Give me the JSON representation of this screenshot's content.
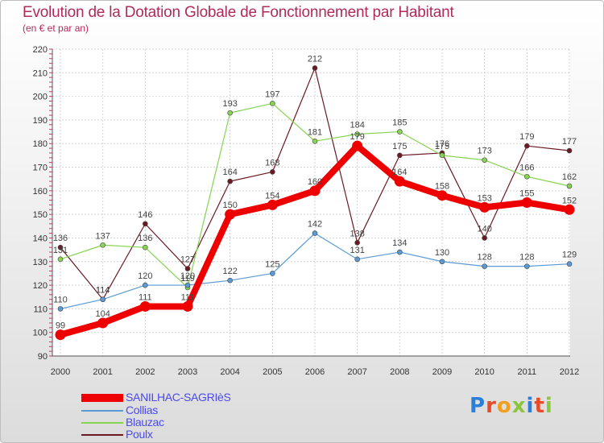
{
  "chart_data": {
    "type": "line",
    "title": "Evolution de la Dotation Globale de Fonctionnement par Habitant",
    "subtitle": "(en € et par an)",
    "x": [
      "2000",
      "2001",
      "2002",
      "2003",
      "2004",
      "2005",
      "2006",
      "2007",
      "2008",
      "2009",
      "2010",
      "2011",
      "2012"
    ],
    "yticks": [
      90,
      100,
      110,
      120,
      130,
      140,
      150,
      160,
      170,
      180,
      190,
      200,
      210,
      220
    ],
    "ylim": [
      90,
      220
    ],
    "grid": true,
    "series": [
      {
        "name": "Poulx",
        "color": "#6b1a24",
        "values": [
          136,
          114,
          146,
          127,
          164,
          168,
          212,
          138,
          175,
          176,
          140,
          179,
          177
        ],
        "labels": [
          "136",
          "114",
          "146",
          "127",
          "164",
          "168",
          "212",
          "138",
          "175",
          "176",
          "140",
          "179",
          "177"
        ]
      },
      {
        "name": "Blauzac",
        "color": "#86d452",
        "values": [
          131,
          137,
          136,
          119,
          193,
          197,
          181,
          184,
          185,
          175,
          173,
          166,
          162
        ],
        "labels": [
          "131",
          "137",
          "136",
          "119",
          "193",
          "197",
          "181",
          "184",
          "185",
          "175",
          "173",
          "166",
          "162"
        ]
      },
      {
        "name": "Collias",
        "color": "#5a9bd5",
        "values": [
          110,
          114,
          120,
          120,
          122,
          125,
          142,
          131,
          134,
          130,
          128,
          128,
          129
        ],
        "labels": [
          "110",
          "114",
          "120",
          "120",
          "122",
          "125",
          "142",
          "131",
          "134",
          "130",
          "128",
          "128",
          "129"
        ]
      },
      {
        "name": "SANILHAC-SAGRIèS",
        "color": "#ee0000",
        "values": [
          99,
          104,
          111,
          111,
          150,
          154,
          160,
          179,
          164,
          158,
          153,
          155,
          152
        ],
        "labels": [
          "99",
          "104",
          "111",
          "111",
          "150",
          "154",
          "160",
          "179",
          "164",
          "158",
          "153",
          "155",
          "152"
        ]
      }
    ]
  },
  "legend": [
    {
      "label": "SANILHAC-SAGRIèS",
      "color": "#ee0000"
    },
    {
      "label": "Collias",
      "color": "#5a9bd5"
    },
    {
      "label": "Blauzac",
      "color": "#86d452"
    },
    {
      "label": "Poulx",
      "color": "#6b1a24"
    }
  ],
  "logo": {
    "p": "P",
    "r": "r",
    "o": "o",
    "x": "x",
    "i": "i",
    "t": "t",
    "i2": "i"
  }
}
